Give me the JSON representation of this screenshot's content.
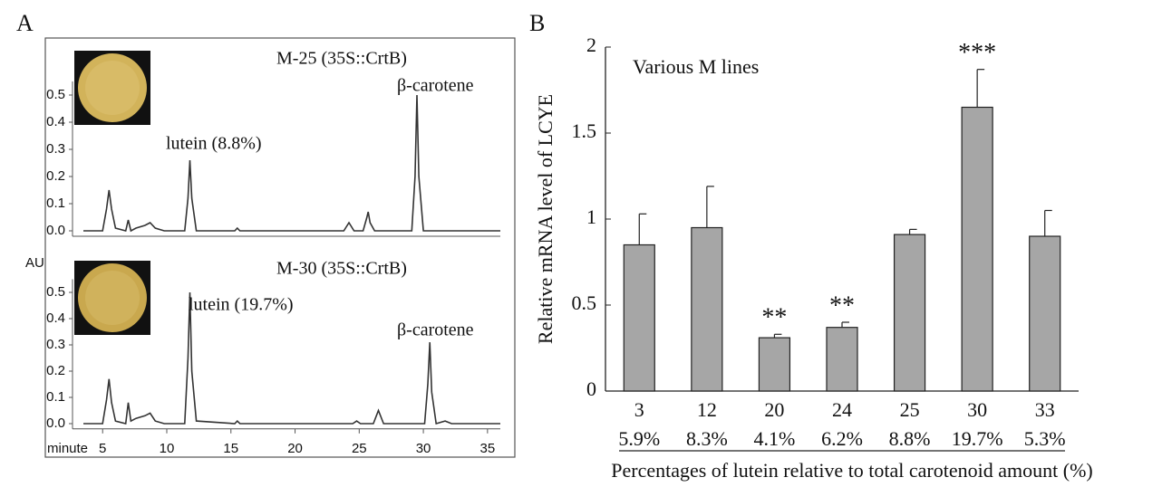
{
  "chart_data": [
    {
      "type": "line",
      "panel": "A",
      "title": "M-25 (35S::CrtB)",
      "annotations": [
        "lutein (8.8%)",
        "β-carotene"
      ],
      "xlim": [
        3.5,
        36
      ],
      "ylim": [
        -0.02,
        0.55
      ],
      "yticks": [
        {
          "value": 0,
          "label": "0.0"
        },
        0.1,
        0.2,
        0.3,
        0.4,
        0.5
      ],
      "x": [
        3.5,
        5.0,
        5.3,
        5.5,
        5.7,
        6.0,
        6.8,
        7.0,
        7.2,
        7.6,
        8.3,
        8.7,
        9.1,
        9.8,
        11.4,
        11.65,
        11.8,
        11.95,
        12.3,
        15.3,
        15.5,
        15.7,
        23.8,
        24.2,
        24.6,
        25.3,
        25.6,
        25.7,
        25.85,
        26.2,
        29.1,
        29.35,
        29.5,
        29.65,
        30.0,
        36
      ],
      "values": [
        0,
        0,
        0.08,
        0.15,
        0.08,
        0.01,
        0,
        0.04,
        0,
        0.01,
        0.02,
        0.03,
        0.01,
        0,
        0,
        0.12,
        0.26,
        0.12,
        0,
        0,
        0.01,
        0,
        0,
        0.03,
        0,
        0,
        0.05,
        0.07,
        0.03,
        0,
        0,
        0.2,
        0.5,
        0.2,
        0,
        0
      ],
      "color": "#333333"
    },
    {
      "type": "line",
      "title": "M-30 (35S::CrtB)",
      "y_label": "AU",
      "x_label": "minute",
      "annotations": [
        "lutein (19.7%)",
        "β-carotene"
      ],
      "xlim": [
        3.5,
        36
      ],
      "ylim": [
        -0.02,
        0.55
      ],
      "xticks": [
        5,
        10,
        15,
        20,
        25,
        30,
        35
      ],
      "yticks": [
        {
          "value": 0,
          "label": "0.0"
        },
        0.1,
        0.2,
        0.3,
        0.4,
        0.5
      ],
      "x": [
        3.5,
        5.0,
        5.3,
        5.5,
        5.7,
        6.0,
        6.8,
        7.0,
        7.2,
        7.6,
        8.3,
        8.7,
        9.1,
        9.8,
        11.4,
        11.65,
        11.8,
        11.95,
        12.3,
        15.3,
        15.5,
        15.7,
        24.5,
        24.8,
        25.1,
        26.1,
        26.5,
        26.9,
        30.1,
        30.35,
        30.5,
        30.65,
        31.0,
        31.7,
        32.2,
        36
      ],
      "values": [
        0,
        0,
        0.09,
        0.17,
        0.08,
        0.01,
        0,
        0.08,
        0.01,
        0.02,
        0.03,
        0.04,
        0.01,
        0,
        0,
        0.25,
        0.5,
        0.2,
        0.01,
        0,
        0.01,
        0,
        0,
        0.01,
        0,
        0,
        0.05,
        0,
        0,
        0.15,
        0.31,
        0.12,
        0,
        0.01,
        0,
        0
      ],
      "color": "#333333"
    },
    {
      "type": "bar",
      "panel": "B",
      "title": "Various M lines",
      "y_label": "Relative mRNA level of LCYE",
      "x_label": "Percentages of lutein relative to total carotenoid amount (%)",
      "categories": [
        "3",
        "12",
        "20",
        "24",
        "25",
        "30",
        "33"
      ],
      "sublabels": [
        "5.9%",
        "8.3%",
        "4.1%",
        "6.2%",
        "8.8%",
        "19.7%",
        "5.3%"
      ],
      "values": [
        0.85,
        0.95,
        0.31,
        0.37,
        0.91,
        1.65,
        0.9
      ],
      "errors": [
        0.18,
        0.24,
        0.02,
        0.03,
        0.03,
        0.22,
        0.15
      ],
      "significance": [
        null,
        null,
        "**",
        "**",
        null,
        "***",
        null
      ],
      "ylim": [
        0,
        2
      ],
      "yticks": [
        0,
        0.5,
        1,
        1.5,
        2
      ],
      "color": "#a6a6a6"
    }
  ]
}
